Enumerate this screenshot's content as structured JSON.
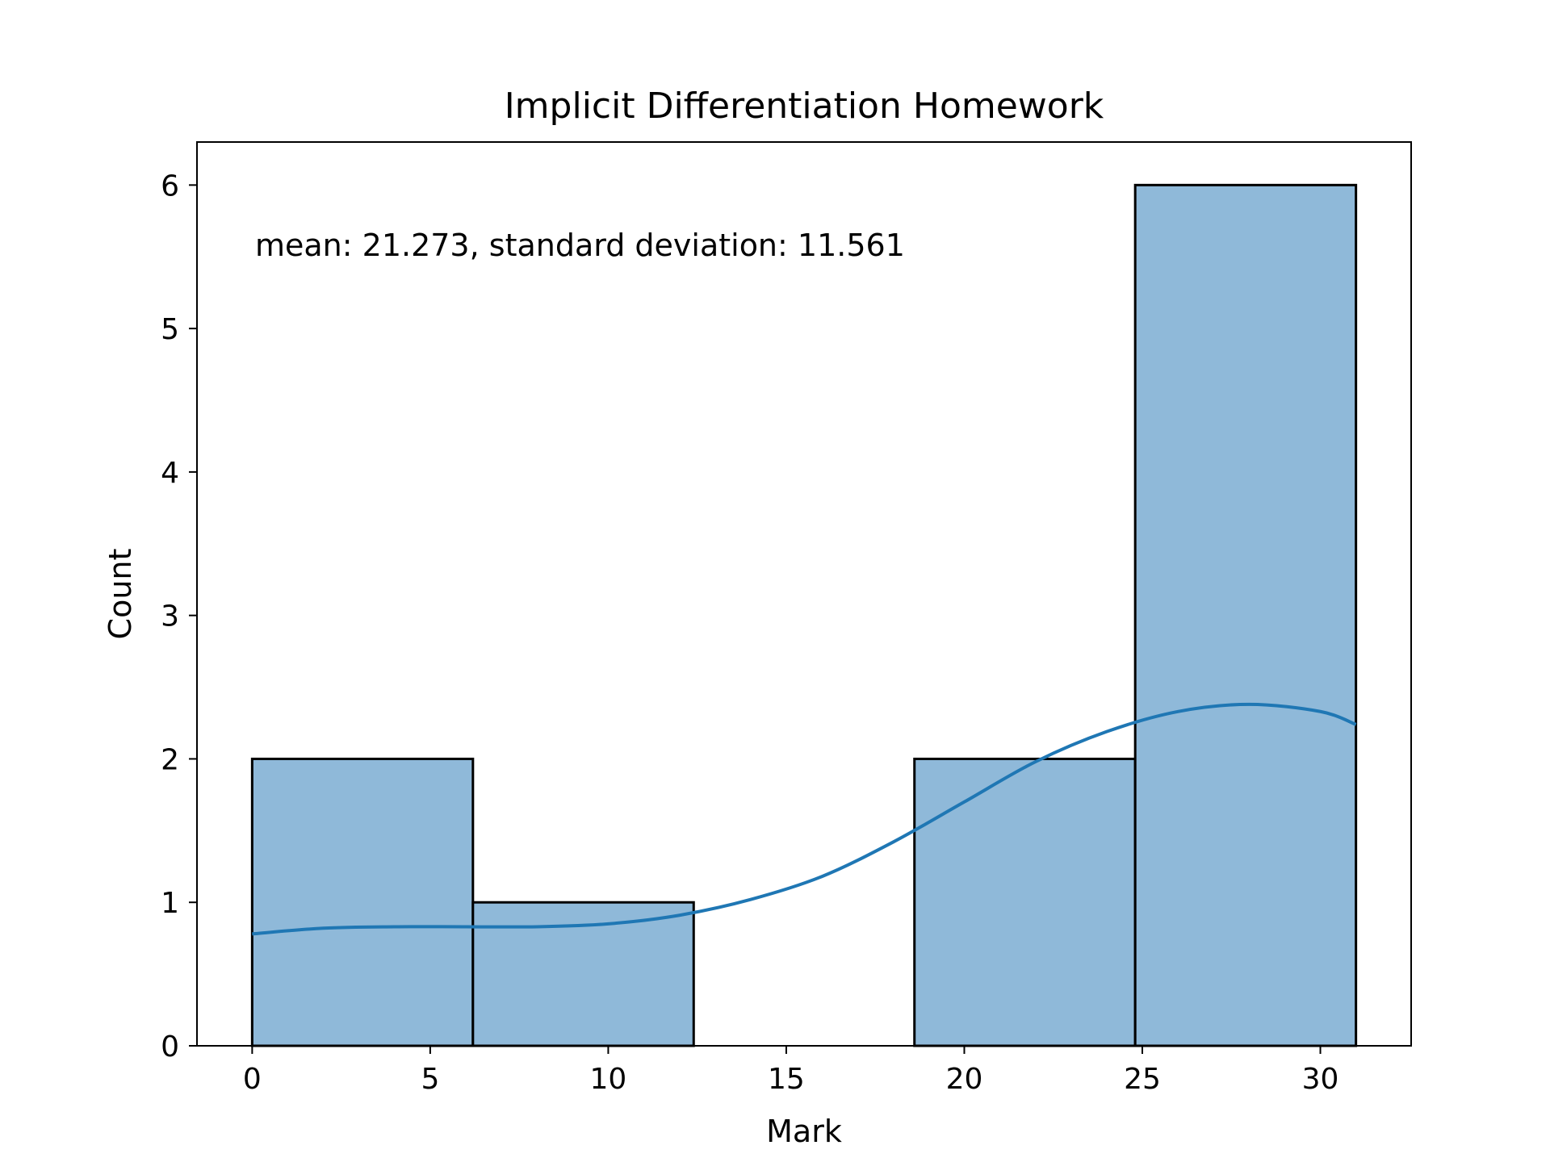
{
  "chart_data": {
    "type": "bar",
    "title": "Implicit Differentiation Homework",
    "xlabel": "Mark",
    "ylabel": "Count",
    "annotation": "mean: 21.273, standard deviation: 11.561",
    "xlim": [
      -1.55,
      32.55
    ],
    "ylim": [
      0,
      6.3
    ],
    "xticks": [
      0,
      5,
      10,
      15,
      20,
      25,
      30
    ],
    "yticks": [
      0,
      1,
      2,
      3,
      4,
      5,
      6
    ],
    "bins": [
      {
        "x0": 0.0,
        "x1": 6.2,
        "count": 2
      },
      {
        "x0": 6.2,
        "x1": 12.4,
        "count": 1
      },
      {
        "x0": 12.4,
        "x1": 18.6,
        "count": 0
      },
      {
        "x0": 18.6,
        "x1": 24.8,
        "count": 2
      },
      {
        "x0": 24.8,
        "x1": 31.0,
        "count": 6
      }
    ],
    "kde": {
      "x": [
        0,
        2,
        4,
        6,
        8,
        10,
        12,
        14,
        16,
        18,
        20,
        22,
        24,
        26,
        28,
        30,
        31
      ],
      "y": [
        0.78,
        0.82,
        0.83,
        0.83,
        0.83,
        0.85,
        0.91,
        1.02,
        1.18,
        1.42,
        1.7,
        1.98,
        2.19,
        2.33,
        2.38,
        2.33,
        2.24
      ]
    },
    "grid": false,
    "legend": "none",
    "colors": {
      "bar_fill": "#8fb9d9",
      "bar_edge": "#000000",
      "kde_line": "#1f77b4"
    }
  }
}
